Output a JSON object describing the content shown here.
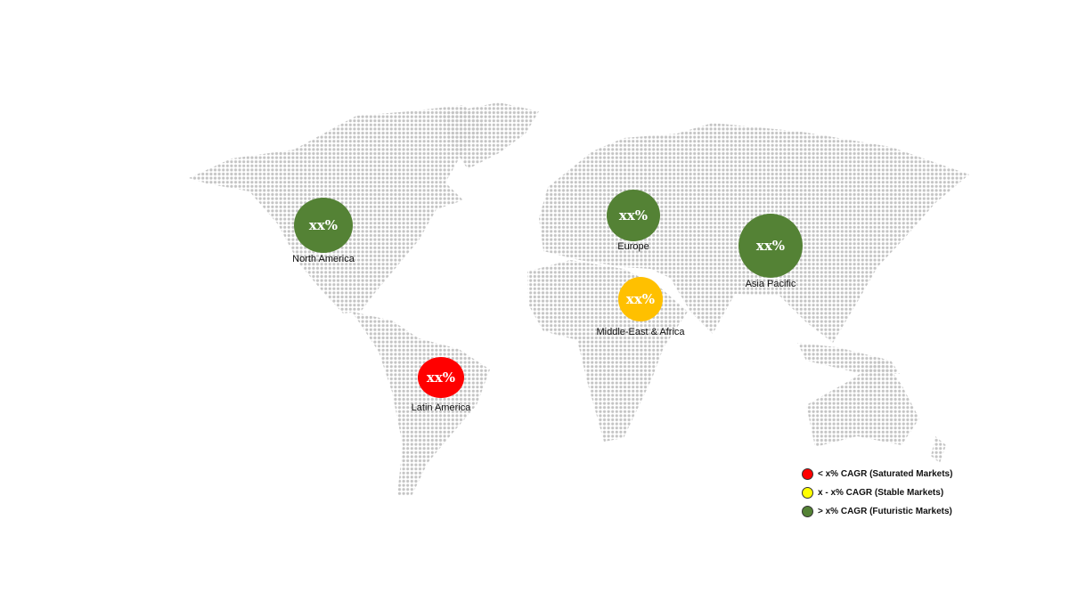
{
  "regions": [
    {
      "id": "north-america",
      "label": "North America",
      "value": "xx%",
      "color": "#548235"
    },
    {
      "id": "europe",
      "label": "Europe",
      "value": "xx%",
      "color": "#548235"
    },
    {
      "id": "asia-pacific",
      "label": "Asia Pacific",
      "value": "xx%",
      "color": "#548235"
    },
    {
      "id": "middle-east-africa",
      "label": "Middle-East & Africa",
      "value": "xx%",
      "color": "#ffc000"
    },
    {
      "id": "latin-america",
      "label": "Latin America",
      "value": "xx%",
      "color": "#ff0000"
    }
  ],
  "legend": [
    {
      "label": "< x% CAGR (Saturated Markets)",
      "color": "#ff0000"
    },
    {
      "label": "x - x% CAGR (Stable Markets)",
      "color": "#ffff00"
    },
    {
      "label": "> x% CAGR (Futuristic Markets)",
      "color": "#548235"
    }
  ],
  "map_dot_color": "#c4c4c4"
}
